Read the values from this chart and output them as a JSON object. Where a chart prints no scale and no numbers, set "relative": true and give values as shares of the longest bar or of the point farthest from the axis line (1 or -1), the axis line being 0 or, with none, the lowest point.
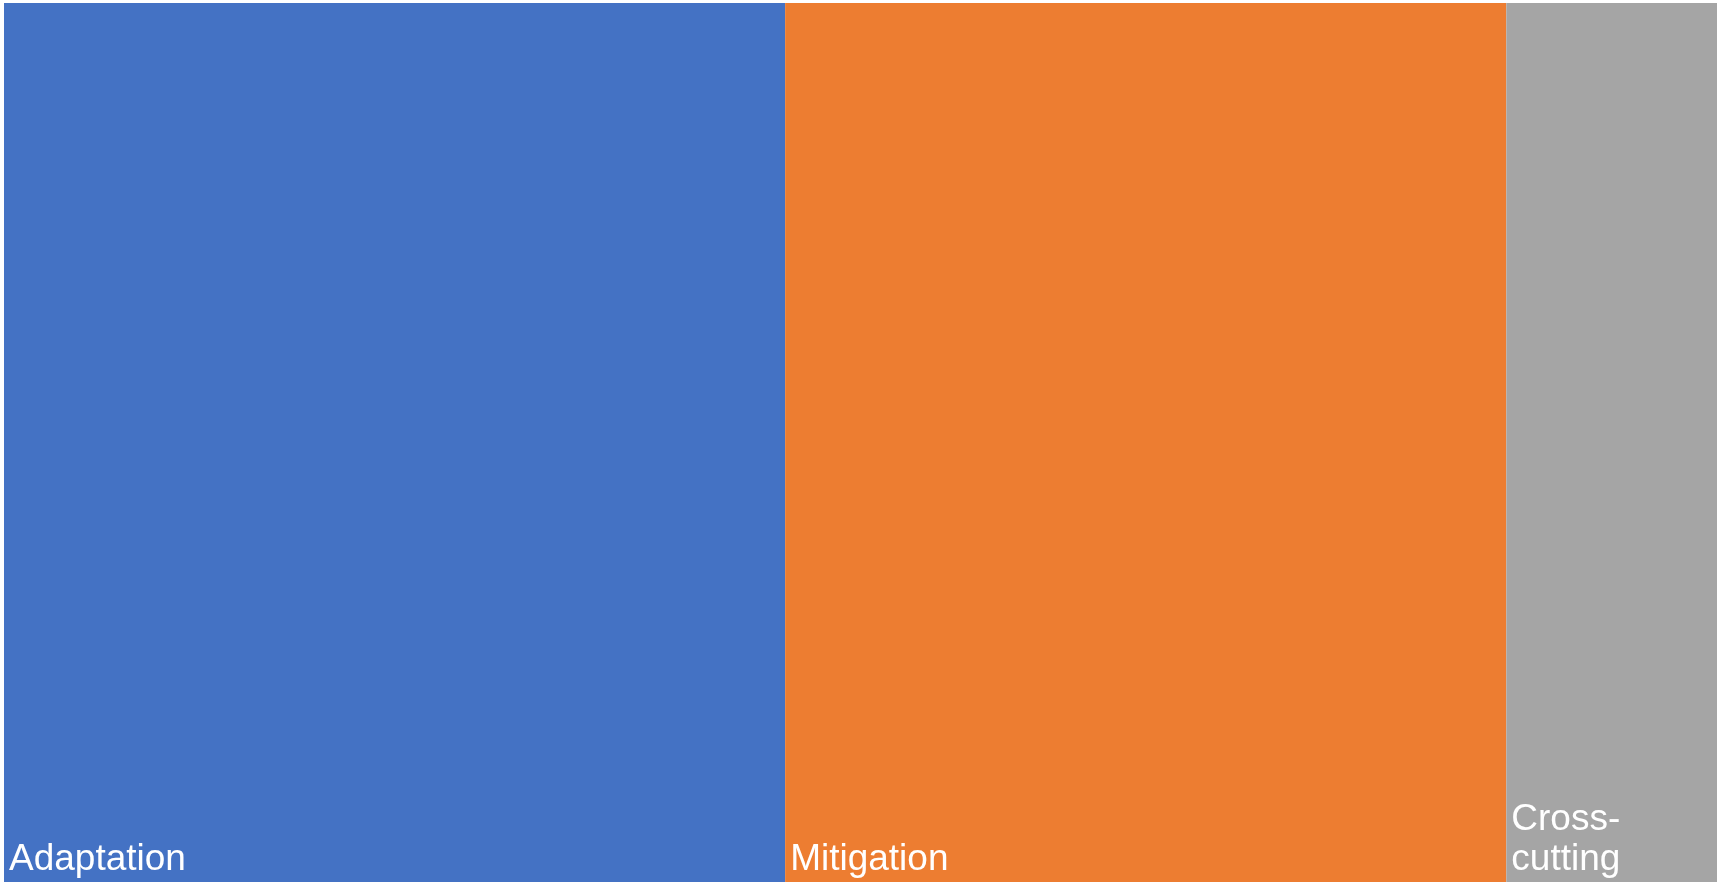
{
  "chart_data": {
    "type": "bar",
    "orientation": "horizontal",
    "stacked": true,
    "relative": true,
    "legend": false,
    "categories": [
      null
    ],
    "series": [
      {
        "name": "Adaptation",
        "color": "#4472c4",
        "values": [
          0.456
        ]
      },
      {
        "name": "Mitigation",
        "color": "#ed7d31",
        "values": [
          0.421
        ]
      },
      {
        "name": "Cross-cutting",
        "color": "#a5a5a5",
        "values": [
          0.123
        ]
      }
    ]
  }
}
